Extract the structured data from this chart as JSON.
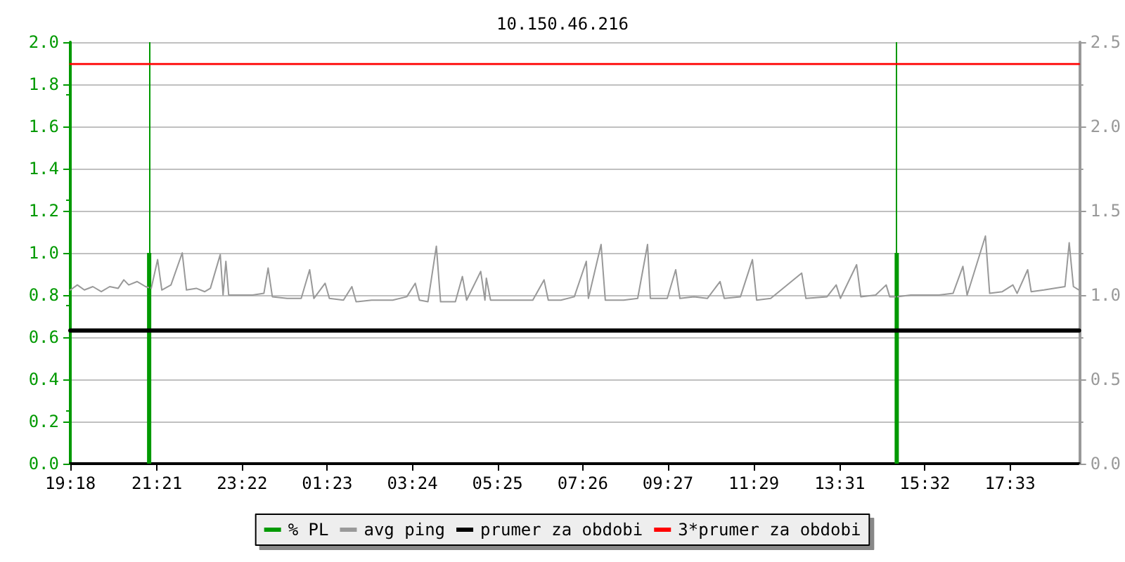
{
  "chart_data": {
    "type": "line",
    "title": "10.150.46.216",
    "xlim": [
      "--01-01T19:18",
      "--01-02T19:11"
    ],
    "xticks": [
      {
        "value": "--01-01T19:18",
        "label": "19:18"
      },
      {
        "value": "--01-01T21:21",
        "label": "21:21"
      },
      {
        "value": "--01-01T23:22",
        "label": "23:22"
      },
      {
        "value": "--01-02T01:23",
        "label": "01:23"
      },
      {
        "value": "--01-02T03:24",
        "label": "03:24"
      },
      {
        "value": "--01-02T05:25",
        "label": "05:25"
      },
      {
        "value": "--01-02T07:26",
        "label": "07:26"
      },
      {
        "value": "--01-02T09:27",
        "label": "09:27"
      },
      {
        "value": "--01-02T11:29",
        "label": "11:29"
      },
      {
        "value": "--01-02T13:31",
        "label": "13:31"
      },
      {
        "value": "--01-02T15:32",
        "label": "15:32"
      },
      {
        "value": "--01-02T17:33",
        "label": "17:33"
      }
    ],
    "ylim": [
      0,
      2
    ],
    "yticks": [
      {
        "value": 0,
        "label": "0.0"
      },
      {
        "value": 0.2,
        "label": "0.2"
      },
      {
        "value": 0.4,
        "label": "0.4"
      },
      {
        "value": 0.6,
        "label": "0.6"
      },
      {
        "value": 0.8,
        "label": "0.8"
      },
      {
        "value": 1,
        "label": "1.0"
      },
      {
        "value": 1.2,
        "label": "1.2"
      },
      {
        "value": 1.4,
        "label": "1.4"
      },
      {
        "value": 1.6,
        "label": "1.6"
      },
      {
        "value": 1.8,
        "label": "1.8"
      },
      {
        "value": 2,
        "label": "2.0"
      }
    ],
    "y2lim": [
      0,
      2.5
    ],
    "y2ticks": [
      {
        "value": 0,
        "label": "0.0"
      },
      {
        "value": 0.5,
        "label": "0.5"
      },
      {
        "value": 1,
        "label": "1.0"
      },
      {
        "value": 1.5,
        "label": "1.5"
      },
      {
        "value": 2,
        "label": "2.0"
      },
      {
        "value": 2.5,
        "label": "2.5"
      }
    ],
    "grid": "y",
    "legend": "bottom",
    "marker": "none",
    "line_style": "solid",
    "ref_lines": [
      {
        "axis": "x",
        "value": "--01-01T21:10",
        "color": "#009900"
      },
      {
        "axis": "x",
        "value": "--01-02T14:52",
        "color": "#009900"
      }
    ],
    "series": [
      {
        "name": "% PL",
        "type": "bar",
        "color": "#009900",
        "x": [
          "--01-01T21:10",
          "--01-02T14:52"
        ],
        "values": [
          1.0,
          1.0
        ]
      },
      {
        "name": "avg ping",
        "color": "#999999",
        "axis": "y2",
        "x": [
          "--01-01T19:18",
          "--01-01T19:28",
          "--01-01T19:38",
          "--01-01T19:50",
          "--01-01T20:02",
          "--01-01T20:14",
          "--01-01T20:26",
          "--01-01T20:34",
          "--01-01T20:41",
          "--01-01T20:53",
          "--01-01T21:05",
          "--01-01T21:13",
          "--01-01T21:22",
          "--01-01T21:28",
          "--01-01T21:41",
          "--01-01T21:57",
          "--01-01T22:03",
          "--01-01T22:17",
          "--01-01T22:29",
          "--01-01T22:37",
          "--01-01T22:51",
          "--01-01T22:55",
          "--01-01T22:59",
          "--01-01T23:03",
          "--01-01T23:17",
          "--01-01T23:37",
          "--01-01T23:53",
          "--01-01T23:59",
          "--01-02T00:05",
          "--01-02T00:26",
          "--01-02T00:46",
          "--01-02T00:58",
          "--01-02T01:04",
          "--01-02T01:20",
          "--01-02T01:26",
          "--01-02T01:46",
          "--01-02T01:58",
          "--01-02T02:04",
          "--01-02T02:26",
          "--01-02T02:56",
          "--01-02T03:16",
          "--01-02T03:28",
          "--01-02T03:34",
          "--01-02T03:46",
          "--01-02T03:58",
          "--01-02T04:04",
          "--01-02T04:25",
          "--01-02T04:35",
          "--01-02T04:41",
          "--01-02T05:01",
          "--01-02T05:07",
          "--01-02T05:09",
          "--01-02T05:15",
          "--01-02T05:45",
          "--01-02T06:15",
          "--01-02T06:31",
          "--01-02T06:37",
          "--01-02T06:55",
          "--01-02T07:14",
          "--01-02T07:31",
          "--01-02T07:34",
          "--01-02T07:52",
          "--01-02T07:58",
          "--01-02T08:24",
          "--01-02T08:44",
          "--01-02T08:58",
          "--01-02T09:02",
          "--01-02T09:26",
          "--01-02T09:38",
          "--01-02T09:44",
          "--01-02T10:04",
          "--01-02T10:23",
          "--01-02T10:41",
          "--01-02T10:47",
          "--01-02T11:10",
          "--01-02T11:27",
          "--01-02T11:33",
          "--01-02T11:53",
          "--01-02T12:37",
          "--01-02T12:43",
          "--01-02T13:13",
          "--01-02T13:26",
          "--01-02T13:32",
          "--01-02T13:55",
          "--01-02T14:01",
          "--01-02T14:22",
          "--01-02T14:37",
          "--01-02T14:42",
          "--01-02T14:52",
          "--01-02T15:12",
          "--01-02T15:32",
          "--01-02T15:52",
          "--01-02T16:12",
          "--01-02T16:26",
          "--01-02T16:32",
          "--01-02T16:58",
          "--01-02T17:04",
          "--01-02T17:22",
          "--01-02T17:37",
          "--01-02T17:43",
          "--01-02T17:58",
          "--01-02T18:03",
          "--01-02T18:21",
          "--01-02T18:35",
          "--01-02T18:51",
          "--01-02T18:57",
          "--01-02T19:03",
          "--01-02T19:11"
        ],
        "values": [
          1.03,
          1.06,
          1.03,
          1.05,
          1.02,
          1.05,
          1.04,
          1.09,
          1.06,
          1.08,
          1.05,
          1.04,
          1.21,
          1.03,
          1.06,
          1.25,
          1.03,
          1.04,
          1.02,
          1.04,
          1.24,
          1.0,
          1.2,
          1.0,
          1.0,
          1.0,
          1.01,
          1.16,
          0.99,
          0.98,
          0.98,
          1.15,
          0.98,
          1.07,
          0.98,
          0.97,
          1.05,
          0.96,
          0.97,
          0.97,
          0.99,
          1.07,
          0.97,
          0.96,
          1.29,
          0.96,
          0.96,
          1.11,
          0.97,
          1.14,
          0.97,
          1.1,
          0.97,
          0.97,
          0.97,
          1.09,
          0.97,
          0.97,
          0.99,
          1.2,
          0.98,
          1.3,
          0.97,
          0.97,
          0.98,
          1.3,
          0.98,
          0.98,
          1.15,
          0.98,
          0.99,
          0.98,
          1.08,
          0.98,
          0.99,
          1.21,
          0.97,
          0.98,
          1.13,
          0.98,
          0.99,
          1.06,
          0.98,
          1.18,
          0.99,
          1.0,
          1.06,
          0.99,
          0.99,
          1.0,
          1.0,
          1.0,
          1.01,
          1.17,
          1.0,
          1.35,
          1.01,
          1.02,
          1.06,
          1.01,
          1.15,
          1.02,
          1.03,
          1.04,
          1.05,
          1.31,
          1.05,
          1.03
        ]
      },
      {
        "name": "prumer za obdobi",
        "color": "#000000",
        "axis": "y2",
        "x": [
          "--01-01T19:18",
          "--01-02T19:11"
        ],
        "values": [
          0.79,
          0.79
        ]
      },
      {
        "name": "3*prumer za obdobi",
        "color": "#ff0000",
        "axis": "y2",
        "x": [
          "--01-01T19:18",
          "--01-02T19:11"
        ],
        "values": [
          2.37,
          2.37
        ]
      }
    ]
  }
}
